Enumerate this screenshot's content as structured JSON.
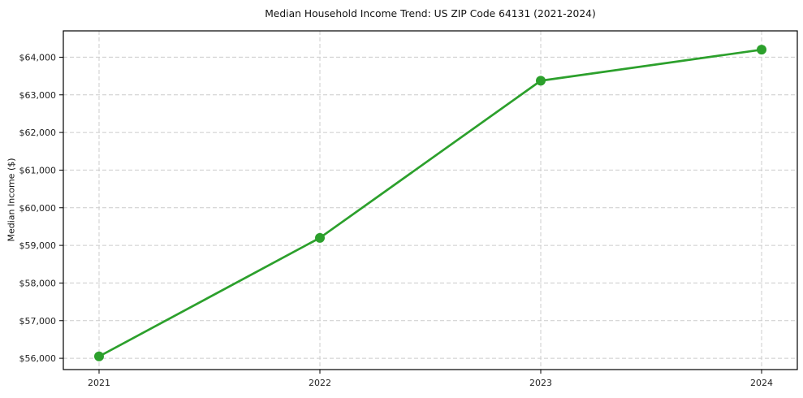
{
  "figure": {
    "background": "#ffffff"
  },
  "chart_data": {
    "type": "line",
    "title": "Median Household Income Trend: US ZIP Code 64131 (2021-2024)",
    "xlabel": "",
    "ylabel": "Median Income ($)",
    "categories": [
      "2021",
      "2022",
      "2023",
      "2024"
    ],
    "series": [
      {
        "name": "Median Household Income",
        "values": [
          56050,
          59200,
          63375,
          64200
        ]
      }
    ],
    "yticks": [
      56000,
      57000,
      58000,
      59000,
      60000,
      61000,
      62000,
      63000,
      64000
    ],
    "ytick_labels": [
      "$56,000",
      "$57,000",
      "$58,000",
      "$59,000",
      "$60,000",
      "$61,000",
      "$62,000",
      "$63,000",
      "$64,000"
    ],
    "ylim": [
      55700,
      64700
    ],
    "grid": true,
    "grid_style": "dashed",
    "legend": false,
    "colors": {
      "line": "#2ca02c",
      "marker": "#2ca02c",
      "grid": "#cccccc",
      "axis": "#000000",
      "text": "#1f1f1f",
      "background": "#ffffff"
    }
  }
}
